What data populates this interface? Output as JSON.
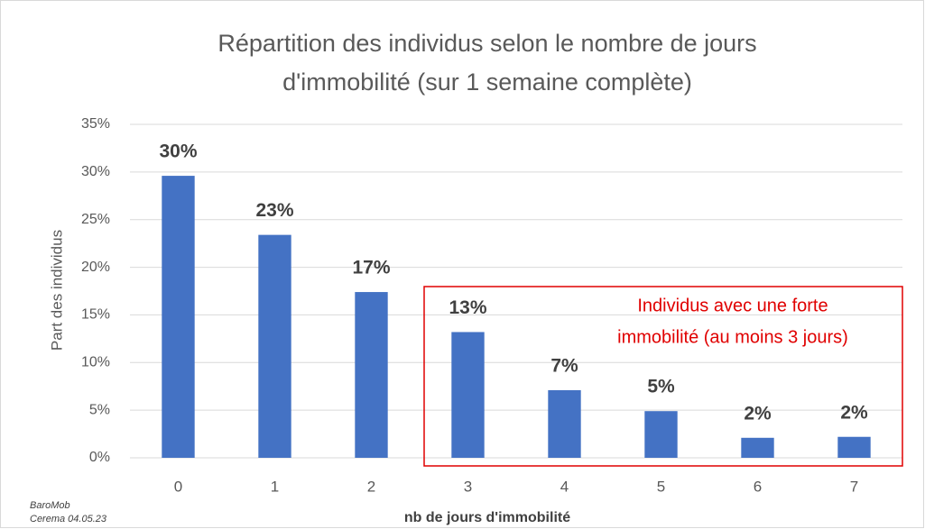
{
  "chart_data": {
    "type": "bar",
    "title": [
      "Répartition des individus selon le nombre de jours",
      "d'immobilité (sur 1 semaine complète)"
    ],
    "x_label": "nb de jours d'immobilité",
    "y_label": "Part des individus",
    "categories": [
      "0",
      "1",
      "2",
      "3",
      "4",
      "5",
      "6",
      "7"
    ],
    "values": [
      29.6,
      23.4,
      17.4,
      13.2,
      7.1,
      4.9,
      2.1,
      2.2
    ],
    "value_labels": [
      "30%",
      "23%",
      "17%",
      "13%",
      "7%",
      "5%",
      "2%",
      "2%"
    ],
    "color": "#4472c4",
    "ylim": [
      0,
      35
    ],
    "yticks": [
      {
        "value": 0,
        "label": "0%"
      },
      {
        "value": 5,
        "label": "5%"
      },
      {
        "value": 10,
        "label": "10%"
      },
      {
        "value": 15,
        "label": "15%"
      },
      {
        "value": 20,
        "label": "20%"
      },
      {
        "value": 25,
        "label": "25%"
      },
      {
        "value": 30,
        "label": "30%"
      },
      {
        "value": 35,
        "label": "35%"
      }
    ],
    "grid": true,
    "annotation": [
      "Individus avec une forte",
      "immobilité (au moins 3 jours)"
    ],
    "source": [
      "BaroMob",
      "Cerema 04.05.23"
    ]
  }
}
